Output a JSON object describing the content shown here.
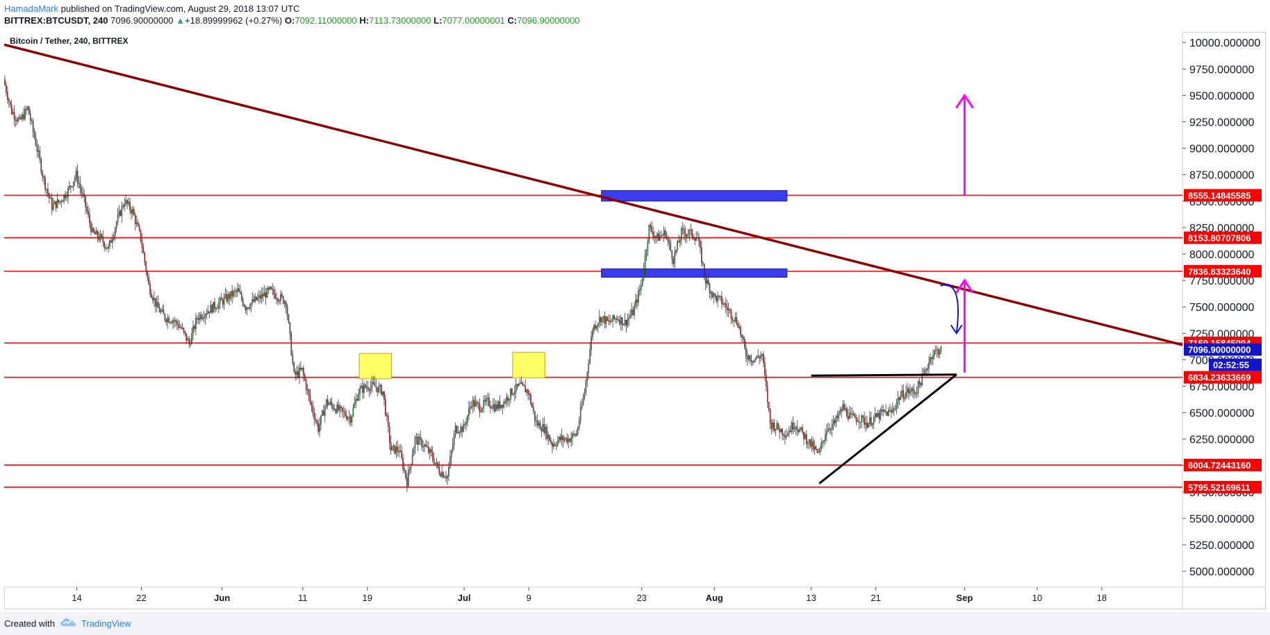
{
  "header": {
    "author": "HamadaMark",
    "published_text": "published on TradingView.com, August 29, 2018 13:07 UTC",
    "symbol": "BITTREX:BTCUSDT, 240",
    "last_price": "7096.90000000",
    "change_arrow": "▲",
    "change": "+18.89999962 (+0.27%)",
    "o_label": "O:",
    "o_value": "7092.11000000",
    "h_label": "H:",
    "h_value": "7113.73000000",
    "l_label": "L:",
    "l_value": "7077.00000001",
    "c_label": "C:",
    "c_value": "7096.90000000"
  },
  "chart_data": {
    "type": "candlestick",
    "title": "Bitcoin / Tether, 240, BITTREX",
    "ylim": [
      4850,
      10100
    ],
    "yticks": [
      5000,
      5250,
      5500,
      5750,
      6000,
      6250,
      6500,
      6750,
      7000,
      7250,
      7500,
      7750,
      8000,
      8250,
      8500,
      8750,
      9000,
      9250,
      9500,
      9750,
      10000
    ],
    "ytick_labels": [
      "5000.000000",
      "5250.000000",
      "5500.000000",
      "5750.000000",
      "6000.000000",
      "6250.000000",
      "6500.000000",
      "6750.000000",
      "7000.000000",
      "7250.000000",
      "7500.000000",
      "7750.000000",
      "8000.000000",
      "8250.000000",
      "8500.000000",
      "8750.000000",
      "9000.000000",
      "9250.000000",
      "9500.000000",
      "9750.000000",
      "10000.000000"
    ],
    "xlim": [
      "2018-05-05",
      "2018-09-28"
    ],
    "xticks": [
      {
        "date": "2018-05-14",
        "label": "14"
      },
      {
        "date": "2018-05-22",
        "label": "22"
      },
      {
        "date": "2018-06-01",
        "label": "Jun",
        "bold": true
      },
      {
        "date": "2018-06-11",
        "label": "11"
      },
      {
        "date": "2018-06-19",
        "label": "19"
      },
      {
        "date": "2018-07-01",
        "label": "Jul",
        "bold": true
      },
      {
        "date": "2018-07-09",
        "label": "9"
      },
      {
        "date": "2018-07-23",
        "label": "23"
      },
      {
        "date": "2018-08-01",
        "label": "Aug",
        "bold": true
      },
      {
        "date": "2018-08-13",
        "label": "13"
      },
      {
        "date": "2018-08-21",
        "label": "21"
      },
      {
        "date": "2018-09-01",
        "label": "Sep",
        "bold": true
      },
      {
        "date": "2018-09-10",
        "label": "10"
      },
      {
        "date": "2018-09-18",
        "label": "18"
      }
    ],
    "price_path": [
      [
        "2018-05-05",
        9650
      ],
      [
        "2018-05-06",
        9350
      ],
      [
        "2018-05-07",
        9250
      ],
      [
        "2018-05-08",
        9380
      ],
      [
        "2018-05-09",
        9050
      ],
      [
        "2018-05-10",
        8700
      ],
      [
        "2018-05-11",
        8450
      ],
      [
        "2018-05-12",
        8500
      ],
      [
        "2018-05-13",
        8600
      ],
      [
        "2018-05-14",
        8750
      ],
      [
        "2018-05-15",
        8500
      ],
      [
        "2018-05-16",
        8200
      ],
      [
        "2018-05-17",
        8150
      ],
      [
        "2018-05-18",
        8050
      ],
      [
        "2018-05-19",
        8300
      ],
      [
        "2018-05-20",
        8500
      ],
      [
        "2018-05-21",
        8400
      ],
      [
        "2018-05-22",
        8150
      ],
      [
        "2018-05-23",
        7700
      ],
      [
        "2018-05-24",
        7500
      ],
      [
        "2018-05-25",
        7400
      ],
      [
        "2018-05-26",
        7380
      ],
      [
        "2018-05-27",
        7300
      ],
      [
        "2018-05-28",
        7150
      ],
      [
        "2018-05-29",
        7400
      ],
      [
        "2018-05-30",
        7450
      ],
      [
        "2018-05-31",
        7500
      ],
      [
        "2018-06-01",
        7550
      ],
      [
        "2018-06-02",
        7600
      ],
      [
        "2018-06-03",
        7650
      ],
      [
        "2018-06-04",
        7500
      ],
      [
        "2018-06-05",
        7550
      ],
      [
        "2018-06-06",
        7600
      ],
      [
        "2018-06-07",
        7650
      ],
      [
        "2018-06-08",
        7600
      ],
      [
        "2018-06-09",
        7550
      ],
      [
        "2018-06-10",
        6850
      ],
      [
        "2018-06-11",
        6900
      ],
      [
        "2018-06-12",
        6600
      ],
      [
        "2018-06-13",
        6350
      ],
      [
        "2018-06-14",
        6600
      ],
      [
        "2018-06-15",
        6550
      ],
      [
        "2018-06-16",
        6500
      ],
      [
        "2018-06-17",
        6450
      ],
      [
        "2018-06-18",
        6700
      ],
      [
        "2018-06-19",
        6750
      ],
      [
        "2018-06-20",
        6750
      ],
      [
        "2018-06-21",
        6700
      ],
      [
        "2018-06-22",
        6150
      ],
      [
        "2018-06-23",
        6150
      ],
      [
        "2018-06-24",
        5850
      ],
      [
        "2018-06-25",
        6250
      ],
      [
        "2018-06-26",
        6200
      ],
      [
        "2018-06-27",
        6100
      ],
      [
        "2018-06-28",
        5950
      ],
      [
        "2018-06-29",
        5900
      ],
      [
        "2018-06-30",
        6350
      ],
      [
        "2018-07-01",
        6350
      ],
      [
        "2018-07-02",
        6600
      ],
      [
        "2018-07-03",
        6550
      ],
      [
        "2018-07-04",
        6600
      ],
      [
        "2018-07-05",
        6550
      ],
      [
        "2018-07-06",
        6600
      ],
      [
        "2018-07-07",
        6700
      ],
      [
        "2018-07-08",
        6750
      ],
      [
        "2018-07-09",
        6700
      ],
      [
        "2018-07-10",
        6400
      ],
      [
        "2018-07-11",
        6350
      ],
      [
        "2018-07-12",
        6200
      ],
      [
        "2018-07-13",
        6250
      ],
      [
        "2018-07-14",
        6250
      ],
      [
        "2018-07-15",
        6300
      ],
      [
        "2018-07-16",
        6700
      ],
      [
        "2018-07-17",
        7300
      ],
      [
        "2018-07-18",
        7400
      ],
      [
        "2018-07-19",
        7350
      ],
      [
        "2018-07-20",
        7400
      ],
      [
        "2018-07-21",
        7350
      ],
      [
        "2018-07-22",
        7450
      ],
      [
        "2018-07-23",
        7700
      ],
      [
        "2018-07-24",
        8250
      ],
      [
        "2018-07-25",
        8150
      ],
      [
        "2018-07-26",
        8200
      ],
      [
        "2018-07-27",
        7950
      ],
      [
        "2018-07-28",
        8200
      ],
      [
        "2018-07-29",
        8200
      ],
      [
        "2018-07-30",
        8150
      ],
      [
        "2018-07-31",
        7750
      ],
      [
        "2018-08-01",
        7600
      ],
      [
        "2018-08-02",
        7550
      ],
      [
        "2018-08-03",
        7450
      ],
      [
        "2018-08-04",
        7350
      ],
      [
        "2018-08-05",
        7050
      ],
      [
        "2018-08-06",
        7000
      ],
      [
        "2018-08-07",
        7050
      ],
      [
        "2018-08-08",
        6400
      ],
      [
        "2018-08-09",
        6350
      ],
      [
        "2018-08-10",
        6300
      ],
      [
        "2018-08-11",
        6400
      ],
      [
        "2018-08-12",
        6300
      ],
      [
        "2018-08-13",
        6200
      ],
      [
        "2018-08-14",
        6100
      ],
      [
        "2018-08-15",
        6350
      ],
      [
        "2018-08-16",
        6400
      ],
      [
        "2018-08-17",
        6550
      ],
      [
        "2018-08-18",
        6450
      ],
      [
        "2018-08-19",
        6450
      ],
      [
        "2018-08-20",
        6400
      ],
      [
        "2018-08-21",
        6450
      ],
      [
        "2018-08-22",
        6500
      ],
      [
        "2018-08-23",
        6500
      ],
      [
        "2018-08-24",
        6650
      ],
      [
        "2018-08-25",
        6700
      ],
      [
        "2018-08-26",
        6700
      ],
      [
        "2018-08-27",
        6850
      ],
      [
        "2018-08-28",
        7050
      ],
      [
        "2018-08-29",
        7097
      ]
    ],
    "horizontal_levels": [
      {
        "price": 8555.14845585,
        "label": "8555.14845585",
        "color": "#ff0000"
      },
      {
        "price": 8153.80707806,
        "label": "8153.80707806",
        "color": "#ff0000"
      },
      {
        "price": 7836.8332364,
        "label": "7836.83323640",
        "color": "#ff0000"
      },
      {
        "price": 7159.15845094,
        "label": "7159.15845094",
        "color": "#ff0000"
      },
      {
        "price": 6834.23633669,
        "label": "6834.23633669",
        "color": "#ff0000"
      },
      {
        "price": 6004.7244316,
        "label": "6004.72443160",
        "color": "#ff0000"
      },
      {
        "price": 5795.52169611,
        "label": "5795.52169611",
        "color": "#ff0000"
      }
    ],
    "last_price_label": "7096.90000000",
    "countdown_label": "02:52:55",
    "trendline": {
      "color": "#8b0000",
      "from": [
        "2018-05-05",
        9980
      ],
      "to": [
        "2018-09-28",
        7140
      ]
    },
    "triangle_lines": [
      {
        "from": [
          "2018-08-13",
          6850
        ],
        "to": [
          "2018-08-31",
          6860
        ]
      },
      {
        "from": [
          "2018-08-14",
          5830
        ],
        "to": [
          "2018-08-31",
          6860
        ]
      }
    ],
    "zones": [
      {
        "from": "2018-07-18",
        "to": "2018-08-10",
        "low": 8500,
        "high": 8600,
        "color": "#3b3bf0"
      },
      {
        "from": "2018-07-18",
        "to": "2018-08-10",
        "low": 7780,
        "high": 7860,
        "color": "#3b3bf0"
      },
      {
        "from": "2018-06-18",
        "to": "2018-06-22",
        "low": 6820,
        "high": 7060,
        "color": "#ffff66"
      },
      {
        "from": "2018-07-07",
        "to": "2018-07-11",
        "low": 6830,
        "high": 7070,
        "color": "#ffff66"
      }
    ],
    "arrows": [
      {
        "date": "2018-09-01",
        "from": 8555,
        "to": 9500,
        "color": "#ff00ff"
      },
      {
        "date": "2018-09-01",
        "from": 6880,
        "to": 7750,
        "color": "#ff00ff"
      }
    ],
    "curved_arrow": {
      "color": "#1515d8",
      "from": [
        "2018-08-29",
        7700
      ],
      "to": [
        "2018-08-31",
        7250
      ]
    },
    "colors": {
      "up": "#2e9e3a",
      "down": "#d11a1a",
      "accent": "#2f7ed8"
    }
  },
  "footer": {
    "created_with": "Created with",
    "brand": "TradingView"
  }
}
